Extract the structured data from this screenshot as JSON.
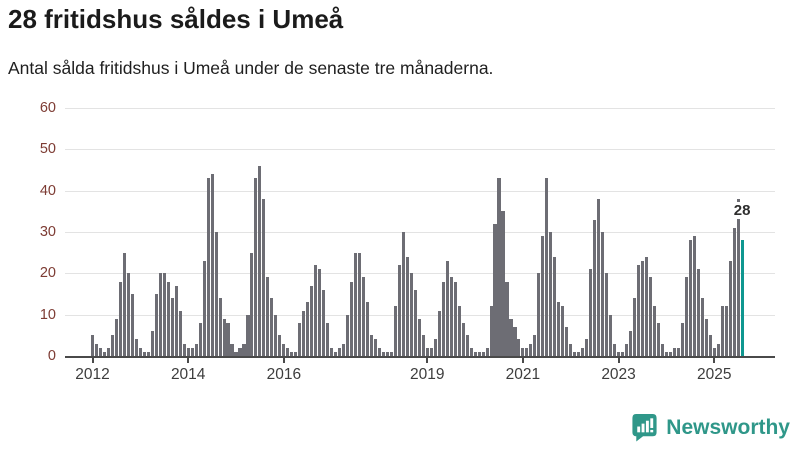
{
  "header": {
    "title": "28 fritidshus såldes i Umeå",
    "subtitle": "Antal sålda fritidshus i Umeå under de senaste tre månaderna."
  },
  "chart_data": {
    "type": "bar",
    "title": "28 fritidshus såldes i Umeå",
    "subtitle": "Antal sålda fritidshus i Umeå under de senaste tre månaderna.",
    "x_start": "2012-01",
    "frequency": "monthly",
    "ylim": [
      0,
      60
    ],
    "y_ticks": [
      0,
      10,
      20,
      30,
      40,
      50,
      60
    ],
    "grid": true,
    "legend": "none",
    "x_ticks": [
      {
        "label": "2012",
        "month_index": 0
      },
      {
        "label": "2014",
        "month_index": 24
      },
      {
        "label": "2016",
        "month_index": 48
      },
      {
        "label": "2019",
        "month_index": 84
      },
      {
        "label": "2021",
        "month_index": 108
      },
      {
        "label": "2023",
        "month_index": 132
      },
      {
        "label": "2025",
        "month_index": 156
      }
    ],
    "values": [
      5,
      3,
      2,
      1,
      2,
      5,
      9,
      18,
      25,
      20,
      15,
      4,
      2,
      1,
      1,
      6,
      15,
      20,
      20,
      18,
      14,
      17,
      11,
      3,
      2,
      2,
      3,
      8,
      23,
      43,
      44,
      30,
      14,
      9,
      8,
      3,
      1,
      2,
      3,
      10,
      25,
      43,
      46,
      38,
      19,
      14,
      10,
      5,
      3,
      2,
      1,
      1,
      8,
      11,
      13,
      17,
      22,
      21,
      16,
      8,
      2,
      1,
      2,
      3,
      10,
      18,
      25,
      25,
      19,
      13,
      5,
      4,
      2,
      1,
      1,
      1,
      12,
      22,
      30,
      24,
      20,
      16,
      9,
      5,
      2,
      2,
      4,
      11,
      18,
      23,
      19,
      18,
      12,
      8,
      5,
      2,
      1,
      1,
      1,
      2,
      12,
      32,
      43,
      35,
      18,
      9,
      7,
      4,
      2,
      2,
      3,
      5,
      20,
      29,
      43,
      30,
      24,
      13,
      12,
      7,
      3,
      1,
      1,
      2,
      4,
      21,
      33,
      38,
      30,
      20,
      10,
      3,
      1,
      1,
      3,
      6,
      14,
      22,
      23,
      24,
      19,
      12,
      8,
      3,
      1,
      1,
      2,
      2,
      8,
      19,
      28,
      29,
      21,
      14,
      9,
      5,
      2,
      3,
      12,
      12,
      23,
      31,
      38,
      28
    ],
    "highlight": {
      "month_index": 163,
      "value": 28,
      "label": "28"
    },
    "colors": {
      "bar": "#6d6d74",
      "highlight": "#0f9790",
      "gridline": "#e3e3e3",
      "axis": "#4a4a4a",
      "y_tick_label": "#7d3b33",
      "x_tick_label": "#3d3d3d"
    }
  },
  "footer": {
    "brand_name": "Newsworthy",
    "brand_color": "#2f9789"
  }
}
